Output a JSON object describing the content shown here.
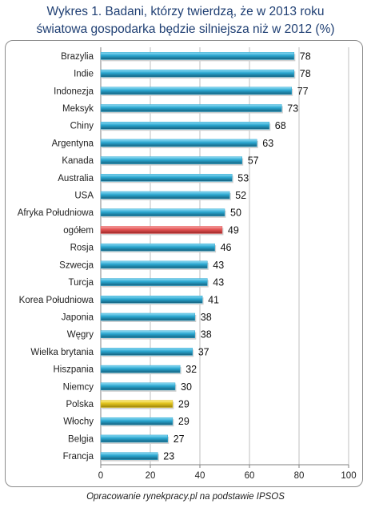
{
  "title": {
    "line1": "Wykres 1. Badani, którzy twierdzą, że w 2013 roku",
    "line2": "światowa gospodarka będzie silniejsza niż w 2012 (%)"
  },
  "source": "Opracowanie rynekpracy.pl  na podstawie IPSOS",
  "chart_data": {
    "type": "bar",
    "orientation": "horizontal",
    "categories": [
      "Brazylia",
      "Indie",
      "Indonezja",
      "Meksyk",
      "Chiny",
      "Argentyna",
      "Kanada",
      "Australia",
      "USA",
      "Afryka Południowa",
      "ogółem",
      "Rosja",
      "Szwecja",
      "Turcja",
      "Korea Południowa",
      "Japonia",
      "Węgry",
      "Wielka brytania",
      "Hiszpania",
      "Niemcy",
      "Polska",
      "Włochy",
      "Belgia",
      "Francja"
    ],
    "values": [
      78,
      78,
      77,
      73,
      68,
      63,
      57,
      53,
      52,
      50,
      49,
      46,
      43,
      43,
      41,
      38,
      38,
      37,
      32,
      30,
      29,
      29,
      27,
      23
    ],
    "xlim": [
      0,
      100
    ],
    "xticks": [
      0,
      20,
      40,
      60,
      80,
      100
    ],
    "grid": "vertical",
    "data_labels": true,
    "colors": {
      "default": "#2aa6cf",
      "highlight_total": "#e25353",
      "highlight_polska": "#e0c21c"
    },
    "highlights": {
      "ogółem": "highlight_total",
      "Polska": "highlight_polska"
    }
  }
}
